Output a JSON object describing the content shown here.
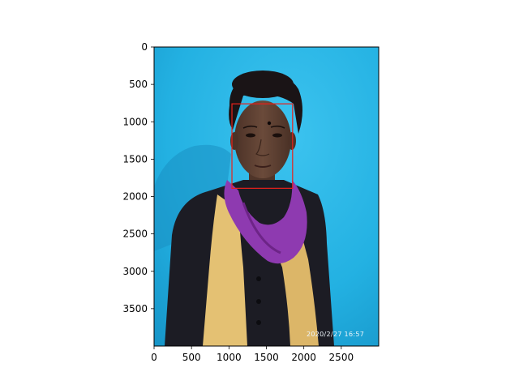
{
  "chart_data": {
    "type": "image",
    "xlim": [
      0,
      3000
    ],
    "ylim": [
      0,
      4000
    ],
    "y_inverted": true,
    "x_ticks": [
      0,
      500,
      1000,
      1500,
      2000,
      2500
    ],
    "y_ticks": [
      0,
      500,
      1000,
      1500,
      2000,
      2500,
      3000,
      3500
    ],
    "x_tick_labels": [
      "0",
      "500",
      "1000",
      "1500",
      "2000",
      "2500"
    ],
    "y_tick_labels": [
      "0",
      "500",
      "1000",
      "1500",
      "2000",
      "2500",
      "3000",
      "3500"
    ],
    "bounding_box": {
      "x_min": 1040,
      "x_max": 1850,
      "y_min": 760,
      "y_max": 1890,
      "color": "#e8211b"
    },
    "timestamp_text": "2020/2/27  16:57",
    "title": "",
    "xlabel": "",
    "ylabel": ""
  },
  "colors": {
    "wall": "#22b3e3",
    "shirt": "#1c1c24",
    "scarf_purple": "#8e3ab0",
    "scarf_yellow": "#e4c173",
    "skin": "#5d3f31",
    "hair": "#1a1416"
  }
}
